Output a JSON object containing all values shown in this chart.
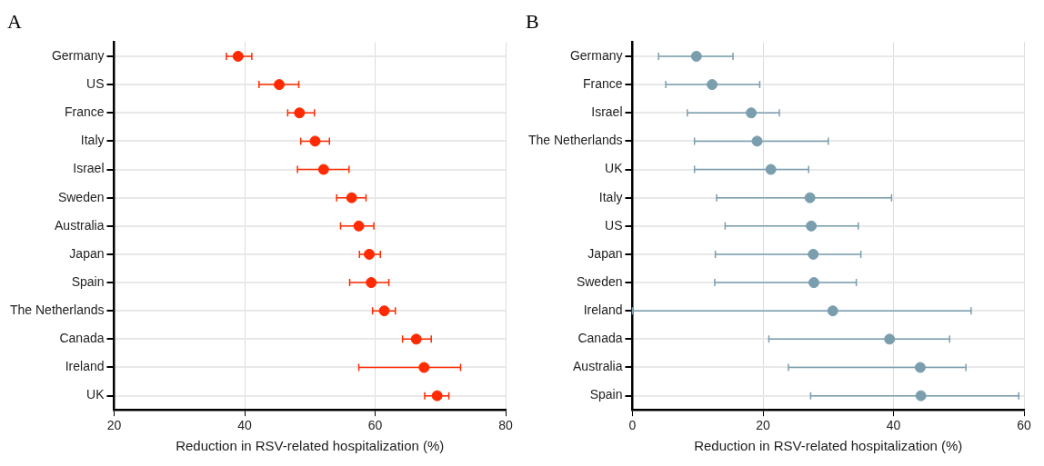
{
  "chart_data": [
    {
      "type": "scatter",
      "title": "A",
      "orientation": "horizontal",
      "xlabel": "Reduction in RSV-related hospitalization (%)",
      "categories": [
        "Germany",
        "US",
        "France",
        "Italy",
        "Israel",
        "Sweden",
        "Australia",
        "Japan",
        "Spain",
        "The Netherlands",
        "Canada",
        "Ireland",
        "UK"
      ],
      "color": "#ff2a00",
      "marker": "circle",
      "grid": true,
      "xlim": [
        20,
        80
      ],
      "xticks": [
        20,
        40,
        60,
        80
      ],
      "values": [
        39.0,
        45.3,
        48.4,
        50.8,
        52.1,
        56.4,
        57.5,
        59.1,
        59.4,
        61.4,
        66.3,
        67.5,
        69.5
      ],
      "errors": [
        [
          37.2,
          41.1
        ],
        [
          42.2,
          48.3
        ],
        [
          46.6,
          50.7
        ],
        [
          48.6,
          53.0
        ],
        [
          48.1,
          56.0
        ],
        [
          54.1,
          58.6
        ],
        [
          54.7,
          59.8
        ],
        [
          57.6,
          60.8
        ],
        [
          56.1,
          62.1
        ],
        [
          59.6,
          63.1
        ],
        [
          64.2,
          68.6
        ],
        [
          57.5,
          73.1
        ],
        [
          67.6,
          71.3
        ]
      ]
    },
    {
      "type": "scatter",
      "title": "B",
      "orientation": "horizontal",
      "xlabel": "Reduction in RSV-related hospitalization (%)",
      "categories": [
        "Germany",
        "France",
        "Israel",
        "The Netherlands",
        "UK",
        "Italy",
        "US",
        "Japan",
        "Sweden",
        "Ireland",
        "Canada",
        "Australia",
        "Spain"
      ],
      "color": "#7a9eae",
      "marker": "circle",
      "grid": true,
      "xlim": [
        0,
        60
      ],
      "xticks": [
        0,
        20,
        40,
        60
      ],
      "values": [
        9.8,
        12.2,
        18.2,
        19.1,
        21.2,
        27.2,
        27.4,
        27.7,
        27.8,
        30.7,
        39.4,
        44.1,
        44.2
      ],
      "errors": [
        [
          4.0,
          15.4
        ],
        [
          5.1,
          19.5
        ],
        [
          8.4,
          22.5
        ],
        [
          9.5,
          30.0
        ],
        [
          9.5,
          27.0
        ],
        [
          12.9,
          39.7
        ],
        [
          14.2,
          34.6
        ],
        [
          12.7,
          35.0
        ],
        [
          12.6,
          34.3
        ],
        [
          0,
          51.9
        ],
        [
          20.9,
          48.6
        ],
        [
          23.9,
          51.1
        ],
        [
          27.3,
          59.2
        ]
      ]
    }
  ]
}
